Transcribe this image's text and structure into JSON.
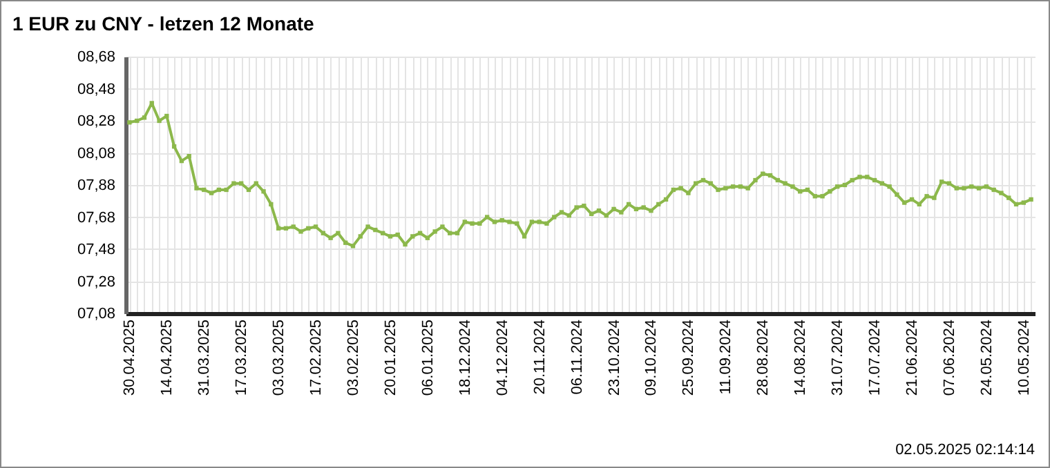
{
  "chart_data": {
    "type": "line",
    "title": "1 EUR zu CNY - letzen 12 Monate",
    "categories": [
      "30.04.2025",
      null,
      null,
      null,
      null,
      "14.04.2025",
      null,
      null,
      null,
      null,
      "31.03.2025",
      null,
      null,
      null,
      null,
      "17.03.2025",
      null,
      null,
      null,
      null,
      "03.03.2025",
      null,
      null,
      null,
      null,
      "17.02.2025",
      null,
      null,
      null,
      null,
      "03.02.2025",
      null,
      null,
      null,
      null,
      "20.01.2025",
      null,
      null,
      null,
      null,
      "06.01.2025",
      null,
      null,
      null,
      null,
      "18.12.2024",
      null,
      null,
      null,
      null,
      "04.12.2024",
      null,
      null,
      null,
      null,
      "20.11.2024",
      null,
      null,
      null,
      null,
      "06.11.2024",
      null,
      null,
      null,
      null,
      "23.10.2024",
      null,
      null,
      null,
      null,
      "09.10.2024",
      null,
      null,
      null,
      null,
      "25.09.2024",
      null,
      null,
      null,
      null,
      "11.09.2024",
      null,
      null,
      null,
      null,
      "28.08.2024",
      null,
      null,
      null,
      null,
      "14.08.2024",
      null,
      null,
      null,
      null,
      "31.07.2024",
      null,
      null,
      null,
      null,
      "17.07.2024",
      null,
      null,
      null,
      null,
      "21.06.2024",
      null,
      null,
      null,
      null,
      "07.06.2024",
      null,
      null,
      null,
      null,
      "24.05.2024",
      null,
      null,
      null,
      null,
      "10.05.2024",
      null
    ],
    "series": [
      {
        "color": "#8cb84b",
        "values": [
          8.27,
          8.28,
          8.3,
          8.39,
          8.28,
          8.31,
          8.12,
          8.03,
          8.06,
          7.86,
          7.85,
          7.83,
          7.85,
          7.85,
          7.89,
          7.89,
          7.85,
          7.89,
          7.84,
          7.76,
          7.61,
          7.61,
          7.62,
          7.59,
          7.61,
          7.62,
          7.58,
          7.55,
          7.58,
          7.52,
          7.5,
          7.56,
          7.62,
          7.6,
          7.58,
          7.56,
          7.57,
          7.51,
          7.56,
          7.58,
          7.55,
          7.59,
          7.62,
          7.58,
          7.58,
          7.65,
          7.64,
          7.64,
          7.68,
          7.65,
          7.66,
          7.65,
          7.64,
          7.56,
          7.65,
          7.65,
          7.64,
          7.68,
          7.71,
          7.69,
          7.74,
          7.75,
          7.7,
          7.72,
          7.69,
          7.73,
          7.71,
          7.76,
          7.73,
          7.74,
          7.72,
          7.76,
          7.79,
          7.85,
          7.86,
          7.83,
          7.89,
          7.91,
          7.89,
          7.85,
          7.86,
          7.87,
          7.87,
          7.86,
          7.91,
          7.95,
          7.94,
          7.91,
          7.89,
          7.87,
          7.84,
          7.85,
          7.81,
          7.81,
          7.84,
          7.87,
          7.88,
          7.91,
          7.93,
          7.93,
          7.91,
          7.89,
          7.87,
          7.82,
          7.77,
          7.79,
          7.76,
          7.81,
          7.8,
          7.9,
          7.89,
          7.86,
          7.86,
          7.87,
          7.86,
          7.87,
          7.85,
          7.83,
          7.8,
          7.76,
          7.77,
          7.79
        ]
      }
    ],
    "ylim": [
      7.08,
      8.68
    ],
    "yticks": [
      {
        "value": 7.08,
        "label": "07,08"
      },
      {
        "value": 7.28,
        "label": "07,28"
      },
      {
        "value": 7.48,
        "label": "07,48"
      },
      {
        "value": 7.68,
        "label": "07,68"
      },
      {
        "value": 7.88,
        "label": "07,88"
      },
      {
        "value": 8.08,
        "label": "08,08"
      },
      {
        "value": 8.28,
        "label": "08,28"
      },
      {
        "value": 8.48,
        "label": "08,48"
      },
      {
        "value": 8.68,
        "label": "08,68"
      }
    ],
    "grid": true,
    "marker": "square",
    "annotations": [
      "02.05.2025 02:14:14"
    ]
  }
}
